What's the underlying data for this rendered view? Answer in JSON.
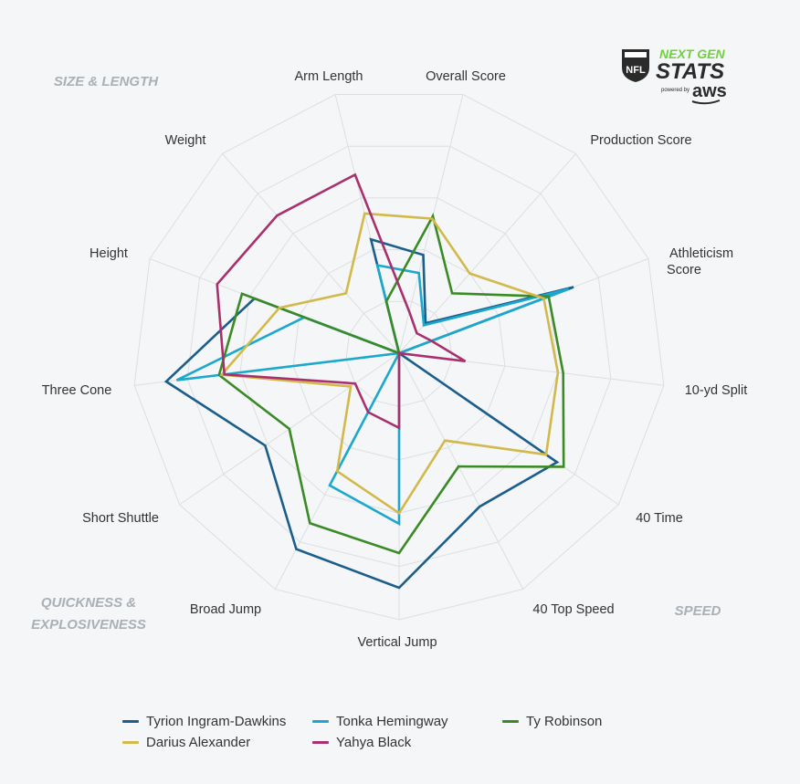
{
  "chart_data": {
    "type": "radar",
    "axes": [
      "Overall Score",
      "Production Score",
      "Athleticism Score",
      "10-yd Split",
      "40 Time",
      "40 Top Speed",
      "Vertical Jump",
      "Broad Jump",
      "Short Shuttle",
      "Three Cone",
      "Height",
      "Weight",
      "Arm Length"
    ],
    "range": [
      0,
      100
    ],
    "grid": true,
    "legend_position": "bottom",
    "group_labels": [
      "SIZE & LENGTH",
      "SPEED",
      "QUICKNESS &",
      "EXPLOSIVENESS"
    ],
    "series": [
      {
        "name": "Tyrion Ingram-Dawkins",
        "color": "#1b5e8c",
        "values": [
          38,
          15,
          70,
          0,
          72,
          65,
          88,
          83,
          61,
          88,
          58,
          0,
          44
        ]
      },
      {
        "name": "Tonka Hemingway",
        "color": "#1ba8cc",
        "values": [
          31,
          14,
          68,
          0,
          0,
          0,
          64,
          56,
          0,
          84,
          38,
          0,
          34
        ]
      },
      {
        "name": "Ty Robinson",
        "color": "#3a8a25",
        "values": [
          53,
          30,
          60,
          62,
          75,
          48,
          75,
          72,
          50,
          68,
          63,
          0,
          20
        ]
      },
      {
        "name": "Darius Alexander",
        "color": "#d2b94b",
        "values": [
          52,
          40,
          58,
          60,
          67,
          37,
          60,
          50,
          22,
          67,
          48,
          30,
          54
        ]
      },
      {
        "name": "Yahya Black",
        "color": "#a8306d",
        "values": [
          16,
          10,
          13,
          25,
          0,
          0,
          28,
          25,
          20,
          66,
          73,
          69,
          69
        ]
      }
    ]
  },
  "logo": {
    "league": "NFL",
    "line1": "NEXT GEN",
    "line2": "STATS",
    "powered": "powered by",
    "brand": "aws"
  }
}
